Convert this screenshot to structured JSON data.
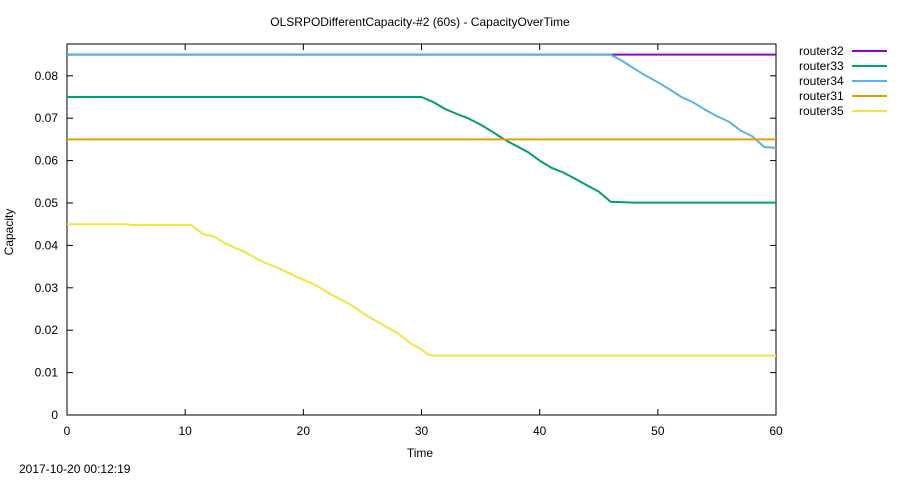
{
  "chart_data": {
    "type": "line",
    "title": "OLSRPODifferentCapacity-#2 (60s) - CapacityOverTime",
    "xlabel": "Time",
    "ylabel": "Capacity",
    "xlim": [
      0,
      60
    ],
    "ylim": [
      0,
      0.0875
    ],
    "x_ticks": [
      0,
      10,
      20,
      30,
      40,
      50,
      60
    ],
    "y_ticks": [
      0,
      0.01,
      0.02,
      0.03,
      0.04,
      0.05,
      0.06,
      0.07,
      0.08
    ],
    "x_tick_labels": [
      "0",
      "10",
      "20",
      "30",
      "40",
      "50",
      "60"
    ],
    "y_tick_labels": [
      "0",
      "0.01",
      "0.02",
      "0.03",
      "0.04",
      "0.05",
      "0.06",
      "0.07",
      "0.08"
    ],
    "grid": false,
    "legend_position": "outside-right-top",
    "series": [
      {
        "name": "router32",
        "color": "#9400d3",
        "points": [
          [
            0,
            0.085
          ],
          [
            46,
            0.085
          ],
          [
            60,
            0.085
          ]
        ]
      },
      {
        "name": "router33",
        "color": "#009e73",
        "points": [
          [
            0,
            0.075
          ],
          [
            30,
            0.075
          ],
          [
            31,
            0.0738
          ],
          [
            32,
            0.0722
          ],
          [
            33,
            0.071
          ],
          [
            34,
            0.0699
          ],
          [
            35,
            0.0685
          ],
          [
            36,
            0.0668
          ],
          [
            37,
            0.065
          ],
          [
            38,
            0.0635
          ],
          [
            39,
            0.062
          ],
          [
            40,
            0.06
          ],
          [
            41,
            0.0583
          ],
          [
            42,
            0.0572
          ],
          [
            43,
            0.0557
          ],
          [
            44,
            0.0542
          ],
          [
            45,
            0.0527
          ],
          [
            46,
            0.0503
          ],
          [
            48,
            0.0501
          ],
          [
            60,
            0.0501
          ]
        ]
      },
      {
        "name": "router34",
        "color": "#56b4e9",
        "points": [
          [
            0,
            0.085
          ],
          [
            46,
            0.085
          ],
          [
            47,
            0.0835
          ],
          [
            48,
            0.0817
          ],
          [
            49,
            0.08
          ],
          [
            50,
            0.0785
          ],
          [
            51,
            0.0768
          ],
          [
            52,
            0.075
          ],
          [
            53,
            0.0737
          ],
          [
            54,
            0.072
          ],
          [
            55,
            0.0705
          ],
          [
            56,
            0.0692
          ],
          [
            57,
            0.0671
          ],
          [
            58,
            0.0657
          ],
          [
            59,
            0.0632
          ],
          [
            60,
            0.063
          ]
        ]
      },
      {
        "name": "router31",
        "color": "#e69f00",
        "points": [
          [
            0,
            0.065
          ],
          [
            60,
            0.065
          ]
        ]
      },
      {
        "name": "router35",
        "color": "#f0e442",
        "points": [
          [
            0,
            0.045
          ],
          [
            5,
            0.045
          ],
          [
            5.5,
            0.0448
          ],
          [
            10.5,
            0.0448
          ],
          [
            11.5,
            0.0427
          ],
          [
            12.5,
            0.042
          ],
          [
            13.5,
            0.0403
          ],
          [
            15,
            0.0385
          ],
          [
            16.5,
            0.0362
          ],
          [
            18,
            0.0345
          ],
          [
            19.5,
            0.0325
          ],
          [
            21,
            0.0307
          ],
          [
            22.5,
            0.0282
          ],
          [
            24,
            0.026
          ],
          [
            25.5,
            0.0232
          ],
          [
            27,
            0.0208
          ],
          [
            28,
            0.0193
          ],
          [
            29,
            0.017
          ],
          [
            30,
            0.0155
          ],
          [
            30.5,
            0.0143
          ],
          [
            31,
            0.014
          ],
          [
            60,
            0.014
          ]
        ]
      }
    ]
  },
  "footer": {
    "timestamp": "2017-10-20 00:12:19"
  }
}
